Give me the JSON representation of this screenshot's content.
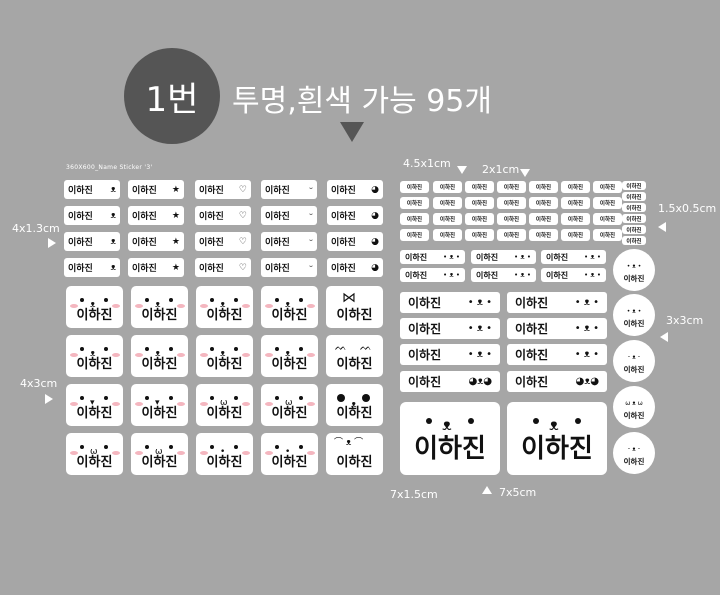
{
  "header": {
    "badge": "1번",
    "headline": "투명,흰색 가능 95개"
  },
  "sheet_title": "360X600_Name Sticker '3'",
  "name": "이하진",
  "labels": {
    "small_left": "4x1.3cm",
    "big_left": "4x3cm",
    "wide_top": "4.5x1cm",
    "tiny_top": "2x1cm",
    "tiny_right": "1.5x0.5cm",
    "circle_right": "3x3cm",
    "wide_bottom": "7x1.5cm",
    "xl_bottom": "7x5cm"
  },
  "small_icons": [
    "bear-face-icon",
    "star-icon",
    "heart-icon",
    "smile-icon",
    "mouse-silhouette-icon"
  ],
  "big_faces": [
    [
      "bear",
      "bear",
      "bear",
      "bear",
      "ribbon"
    ],
    [
      "bear",
      "bear",
      "bear",
      "bear",
      "lashes"
    ],
    [
      "owl",
      "owl",
      "cat",
      "cat",
      "panda"
    ],
    [
      "cat",
      "cat",
      "dots",
      "dots",
      "brows"
    ]
  ],
  "colors": {
    "background": "#a6a6a6",
    "badge": "#555555",
    "sticker": "#ffffff",
    "blush": "#f4b6bf"
  }
}
